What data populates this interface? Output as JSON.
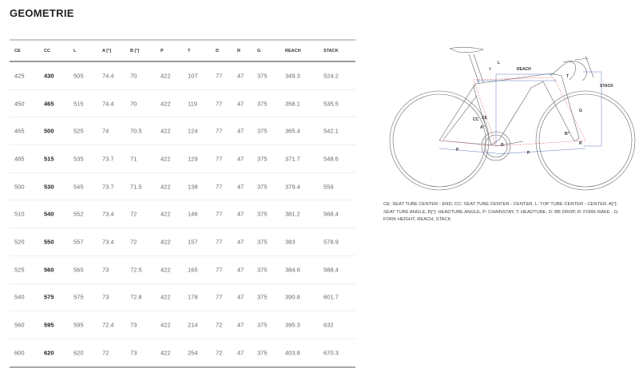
{
  "title": "GEOMETRIE",
  "table": {
    "headers": [
      "CE",
      "CC",
      "L",
      "A [°]",
      "B [°]",
      "P",
      "T",
      "D",
      "R",
      "G",
      "REACH",
      "STACK"
    ],
    "rows": [
      [
        "425",
        "430",
        "505",
        "74.4",
        "70",
        "422",
        "107",
        "77",
        "47",
        "375",
        "349.3",
        "524.2"
      ],
      [
        "450",
        "465",
        "515",
        "74.4",
        "70",
        "422",
        "119",
        "77",
        "47",
        "375",
        "358.1",
        "535.5"
      ],
      [
        "465",
        "500",
        "525",
        "74",
        "70.5",
        "422",
        "124",
        "77",
        "47",
        "375",
        "365.4",
        "542.1"
      ],
      [
        "485",
        "515",
        "535",
        "73.7",
        "71",
        "422",
        "129",
        "77",
        "47",
        "375",
        "371.7",
        "548.6"
      ],
      [
        "500",
        "530",
        "545",
        "73.7",
        "71.5",
        "422",
        "138",
        "77",
        "47",
        "375",
        "379.4",
        "559"
      ],
      [
        "510",
        "540",
        "552",
        "73.4",
        "72",
        "422",
        "146",
        "77",
        "47",
        "375",
        "381.2",
        "568.4"
      ],
      [
        "520",
        "550",
        "557",
        "73.4",
        "72",
        "422",
        "157",
        "77",
        "47",
        "375",
        "383",
        "578.9"
      ],
      [
        "525",
        "560",
        "565",
        "73",
        "72.5",
        "422",
        "165",
        "77",
        "47",
        "375",
        "384.6",
        "588.4"
      ],
      [
        "540",
        "575",
        "575",
        "73",
        "72.8",
        "422",
        "178",
        "77",
        "47",
        "375",
        "390.8",
        "601.7"
      ],
      [
        "560",
        "595",
        "595",
        "72.4",
        "73",
        "422",
        "214",
        "72",
        "47",
        "375",
        "395.3",
        "632"
      ],
      [
        "600",
        "620",
        "620",
        "72",
        "73",
        "422",
        "254",
        "72",
        "47",
        "375",
        "403.8",
        "670.3"
      ]
    ]
  },
  "diagram": {
    "labels": {
      "L": "L",
      "REACH": "REACH",
      "STACK": "STACK",
      "CC": "CC",
      "CE": "CE",
      "A": "A°",
      "B": "B°",
      "T": "T",
      "G": "G",
      "P": "P",
      "D": "D",
      "R": "R",
      "I": "I"
    },
    "colors": {
      "frame": "#555555",
      "dims": "#3b5bb5",
      "centerline": "#e05050"
    }
  },
  "legend": "CE: SEAT TUBE CENTER - END, CC: SEAT TUBE CENTER - CENTER, L: TOP TUBE CENTER - CENTER, A[°]: SEAT TUBE ANGLE, B[°]: HEADTUBE ANGLE, P: CHAINSTAY, T: HEADTUBE, D: BB DROP, R: FORK RAKE , G: FORK HEIGHT, REACH, STACK"
}
